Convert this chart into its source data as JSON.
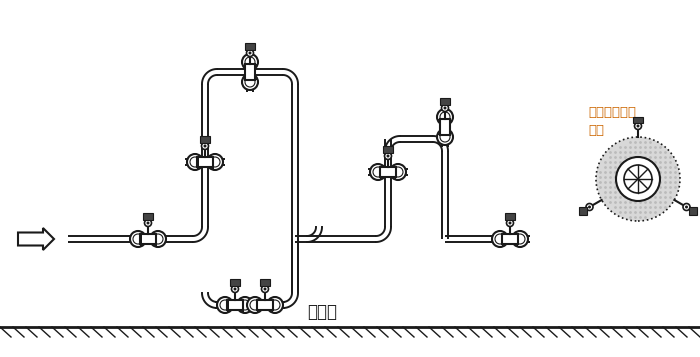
{
  "bg_color": "#ffffff",
  "lc": "#1a1a1a",
  "ground_label": "水平面",
  "annotation_text": "允许任意角度\n安装",
  "annotation_color": "#CC6600",
  "fig_w": 7.0,
  "fig_h": 3.57,
  "dpi": 100
}
